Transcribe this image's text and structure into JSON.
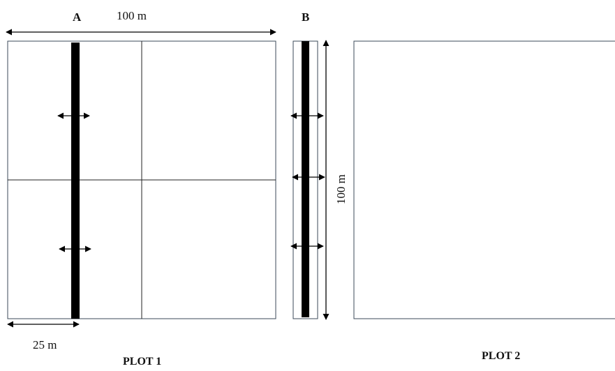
{
  "figure": {
    "label_a": "A",
    "label_b": "B",
    "dim_width": "100 m",
    "dim_height": "100 m",
    "dim_offset": "25 m",
    "plot1_title": "PLOT 1",
    "plot2_title": "PLOT 2"
  }
}
